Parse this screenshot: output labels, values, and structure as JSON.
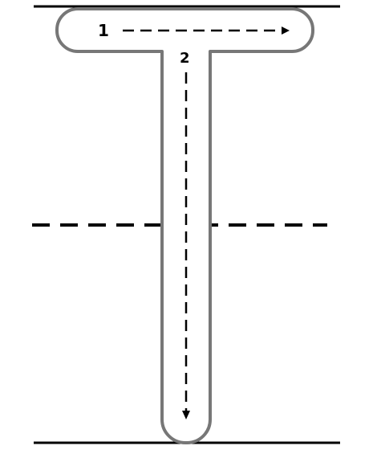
{
  "steps": [
    {
      "number": "1",
      "direction": "left-to-right"
    },
    {
      "number": "2",
      "direction": "top-to-bottom"
    }
  ],
  "colors": {
    "outline": "#777777",
    "lines": "#000000",
    "background": "#ffffff"
  },
  "letter": "T"
}
